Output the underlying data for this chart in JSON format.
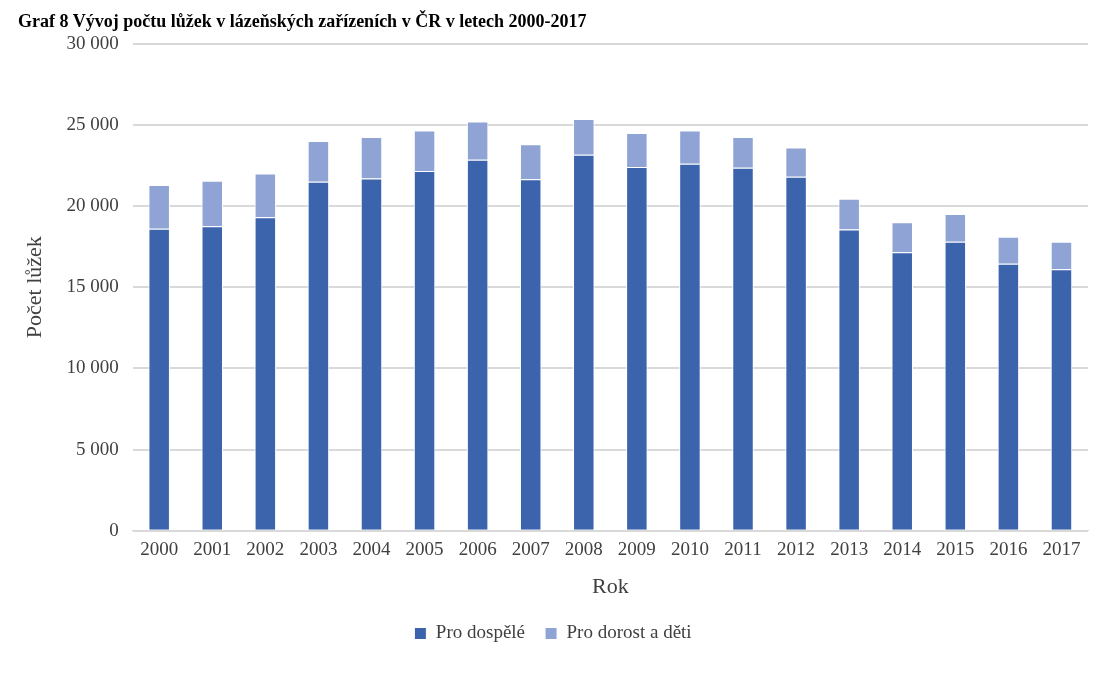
{
  "chart_data": {
    "type": "bar",
    "title": "Graf 8 Vývoj počtu lůžek v lázeňských zařízeních v ČR v letech 2000-2017",
    "xlabel": "Rok",
    "ylabel": "Počet lůžek",
    "categories": [
      "2000",
      "2001",
      "2002",
      "2003",
      "2004",
      "2005",
      "2006",
      "2007",
      "2008",
      "2009",
      "2010",
      "2011",
      "2012",
      "2013",
      "2014",
      "2015",
      "2016",
      "2017"
    ],
    "stacked": true,
    "series": [
      {
        "name": "Pro dospělé",
        "color": "#3c64ad",
        "values": [
          18600,
          18750,
          19300,
          21500,
          21700,
          22150,
          22850,
          21650,
          23150,
          22400,
          22600,
          22350,
          21800,
          18550,
          17150,
          17800,
          16450,
          16100
        ]
      },
      {
        "name": "Pro dorost a děti",
        "color": "#8fa4d4",
        "values": [
          2700,
          2800,
          2700,
          2500,
          2550,
          2500,
          2350,
          2150,
          2200,
          2100,
          2050,
          1900,
          1800,
          1900,
          1850,
          1700,
          1650,
          1700
        ]
      }
    ],
    "ylim": [
      0,
      30000
    ],
    "yticks": [
      0,
      {
        "value": 5000,
        "label": "5 000"
      },
      {
        "value": 10000,
        "label": "10 000"
      },
      {
        "value": 15000,
        "label": "15 000"
      },
      {
        "value": 20000,
        "label": "20 000"
      },
      {
        "value": 25000,
        "label": "25 000"
      },
      {
        "value": 30000,
        "label": "30 000"
      }
    ],
    "grid": "y",
    "legend": "bottom"
  }
}
